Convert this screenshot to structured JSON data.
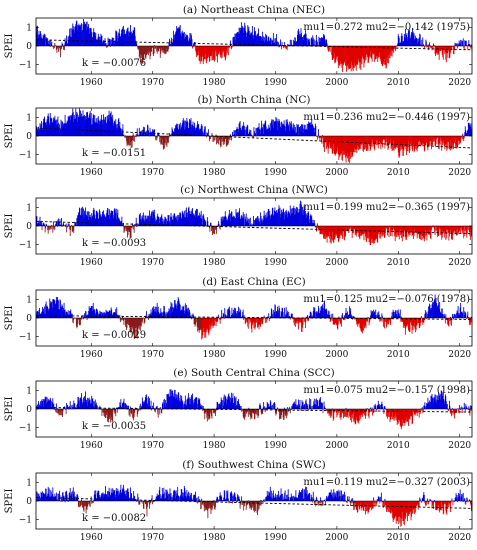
{
  "chart_data": [
    {
      "type": "area",
      "title": "(a) Northeast China (NEC)",
      "ylabel": "SPEI",
      "xlim": [
        1951,
        2022
      ],
      "ylim": [
        -1.5,
        1.5
      ],
      "x_ticks": [
        1960,
        1970,
        1980,
        1990,
        2000,
        2010,
        2020
      ],
      "y_ticks": [
        -1,
        0,
        1
      ],
      "trend_k": "k = -0.0076",
      "mu1": "mu1=0.272",
      "mu2": "mu2=-0.142",
      "change_year": "(1975)",
      "colors": {
        "positive": "#0000dd",
        "negative_before": "#8b1a1a",
        "negative_after": "#e00000"
      },
      "anchors": [
        [
          1951,
          0.9
        ],
        [
          1953,
          0.2
        ],
        [
          1955,
          -0.3
        ],
        [
          1957,
          1.0
        ],
        [
          1959,
          1.2
        ],
        [
          1961,
          0.4
        ],
        [
          1963,
          0.2
        ],
        [
          1965,
          0.8
        ],
        [
          1967,
          0.9
        ],
        [
          1968,
          -0.8
        ],
        [
          1970,
          -0.2
        ],
        [
          1972,
          -0.4
        ],
        [
          1974,
          0.9
        ],
        [
          1976,
          0.5
        ],
        [
          1978,
          -0.8
        ],
        [
          1980,
          -0.6
        ],
        [
          1982,
          -0.4
        ],
        [
          1984,
          1.0
        ],
        [
          1986,
          0.8
        ],
        [
          1988,
          0.5
        ],
        [
          1990,
          0.3
        ],
        [
          1992,
          -0.1
        ],
        [
          1994,
          0.7
        ],
        [
          1996,
          0.2
        ],
        [
          1998,
          0.4
        ],
        [
          2000,
          -0.9
        ],
        [
          2002,
          -1.2
        ],
        [
          2004,
          -0.9
        ],
        [
          2006,
          -0.5
        ],
        [
          2008,
          -0.9
        ],
        [
          2010,
          0.3
        ],
        [
          2012,
          0.7
        ],
        [
          2014,
          0.2
        ],
        [
          2016,
          -0.3
        ],
        [
          2018,
          -0.5
        ],
        [
          2020,
          0.2
        ],
        [
          2022,
          0.0
        ]
      ]
    },
    {
      "type": "area",
      "title": "(b) North China (NC)",
      "ylabel": "SPEI",
      "xlim": [
        1951,
        2022
      ],
      "ylim": [
        -1.5,
        1.5
      ],
      "x_ticks": [
        1960,
        1970,
        1980,
        1990,
        2000,
        2010,
        2020
      ],
      "y_ticks": [
        -1,
        0,
        1
      ],
      "trend_k": "k = -0.0151",
      "mu1": "mu1=0.236",
      "mu2": "mu2=-0.446",
      "change_year": "(1997)",
      "colors": {
        "positive": "#0000dd",
        "negative_before": "#8b1a1a",
        "negative_after": "#e00000"
      },
      "anchors": [
        [
          1951,
          0.3
        ],
        [
          1953,
          1.0
        ],
        [
          1955,
          0.6
        ],
        [
          1957,
          1.1
        ],
        [
          1959,
          1.1
        ],
        [
          1961,
          0.8
        ],
        [
          1963,
          1.1
        ],
        [
          1965,
          0.4
        ],
        [
          1966,
          -0.6
        ],
        [
          1968,
          0.3
        ],
        [
          1970,
          0.2
        ],
        [
          1972,
          -0.5
        ],
        [
          1974,
          0.6
        ],
        [
          1976,
          0.7
        ],
        [
          1978,
          0.4
        ],
        [
          1980,
          -0.2
        ],
        [
          1982,
          -0.4
        ],
        [
          1984,
          0.6
        ],
        [
          1986,
          0.2
        ],
        [
          1988,
          0.5
        ],
        [
          1990,
          0.7
        ],
        [
          1992,
          0.6
        ],
        [
          1994,
          0.4
        ],
        [
          1996,
          0.6
        ],
        [
          1998,
          -0.5
        ],
        [
          2000,
          -0.9
        ],
        [
          2002,
          -1.1
        ],
        [
          2004,
          -0.6
        ],
        [
          2006,
          -0.5
        ],
        [
          2008,
          -0.4
        ],
        [
          2010,
          -0.8
        ],
        [
          2012,
          -0.6
        ],
        [
          2014,
          -0.5
        ],
        [
          2016,
          -0.3
        ],
        [
          2018,
          -0.6
        ],
        [
          2020,
          -0.4
        ],
        [
          2021,
          0.4
        ],
        [
          2022,
          0.6
        ]
      ]
    },
    {
      "type": "area",
      "title": "(c) Northwest China (NWC)",
      "ylabel": "SPEI",
      "xlim": [
        1951,
        2022
      ],
      "ylim": [
        -1.5,
        1.5
      ],
      "x_ticks": [
        1960,
        1970,
        1980,
        1990,
        2000,
        2010,
        2020
      ],
      "y_ticks": [
        -1,
        0,
        1
      ],
      "trend_k": "k = -0.0093",
      "mu1": "mu1=0.199",
      "mu2": "mu2=-0.365",
      "change_year": "(1997)",
      "colors": {
        "positive": "#0000dd",
        "negative_before": "#8b1a1a",
        "negative_after": "#e00000"
      },
      "anchors": [
        [
          1951,
          0.3
        ],
        [
          1953,
          -0.2
        ],
        [
          1955,
          0.2
        ],
        [
          1957,
          -0.3
        ],
        [
          1958,
          0.8
        ],
        [
          1960,
          0.6
        ],
        [
          1962,
          0.7
        ],
        [
          1964,
          0.8
        ],
        [
          1966,
          -0.5
        ],
        [
          1968,
          0.4
        ],
        [
          1970,
          0.7
        ],
        [
          1972,
          0.3
        ],
        [
          1974,
          0.6
        ],
        [
          1976,
          0.8
        ],
        [
          1978,
          0.5
        ],
        [
          1980,
          -0.3
        ],
        [
          1982,
          0.6
        ],
        [
          1984,
          0.6
        ],
        [
          1986,
          0.2
        ],
        [
          1988,
          0.5
        ],
        [
          1990,
          0.8
        ],
        [
          1992,
          0.7
        ],
        [
          1994,
          1.0
        ],
        [
          1996,
          0.3
        ],
        [
          1998,
          -0.6
        ],
        [
          2000,
          -0.7
        ],
        [
          2002,
          -0.3
        ],
        [
          2004,
          -0.5
        ],
        [
          2006,
          -0.8
        ],
        [
          2008,
          -0.3
        ],
        [
          2010,
          -0.5
        ],
        [
          2012,
          -0.4
        ],
        [
          2014,
          -0.6
        ],
        [
          2016,
          -0.2
        ],
        [
          2018,
          -0.5
        ],
        [
          2020,
          -0.3
        ],
        [
          2022,
          -0.4
        ]
      ]
    },
    {
      "type": "area",
      "title": "(d) East China (EC)",
      "ylabel": "SPEI",
      "xlim": [
        1951,
        2022
      ],
      "ylim": [
        -1.5,
        1.5
      ],
      "x_ticks": [
        1960,
        1970,
        1980,
        1990,
        2000,
        2010,
        2020
      ],
      "y_ticks": [
        -1,
        0,
        1
      ],
      "trend_k": "k = -0.0029",
      "mu1": "mu1=0.125",
      "mu2": "mu2=-0.076",
      "change_year": "(1978)",
      "colors": {
        "positive": "#0000dd",
        "negative_before": "#8b1a1a",
        "negative_after": "#e00000"
      },
      "anchors": [
        [
          1951,
          0.2
        ],
        [
          1953,
          0.6
        ],
        [
          1954,
          1.0
        ],
        [
          1956,
          0.4
        ],
        [
          1958,
          -0.3
        ],
        [
          1960,
          0.5
        ],
        [
          1962,
          0.2
        ],
        [
          1964,
          0.4
        ],
        [
          1966,
          -0.5
        ],
        [
          1967,
          -1.0
        ],
        [
          1968,
          -0.4
        ],
        [
          1970,
          0.5
        ],
        [
          1972,
          0.3
        ],
        [
          1974,
          0.8
        ],
        [
          1976,
          0.3
        ],
        [
          1978,
          -0.9
        ],
        [
          1980,
          -0.3
        ],
        [
          1982,
          0.3
        ],
        [
          1984,
          0.4
        ],
        [
          1986,
          -0.4
        ],
        [
          1988,
          -0.3
        ],
        [
          1990,
          0.4
        ],
        [
          1992,
          0.3
        ],
        [
          1994,
          -0.5
        ],
        [
          1996,
          0.2
        ],
        [
          1998,
          0.6
        ],
        [
          2000,
          -0.4
        ],
        [
          2002,
          0.4
        ],
        [
          2004,
          -0.6
        ],
        [
          2006,
          0.3
        ],
        [
          2008,
          -0.3
        ],
        [
          2010,
          0.4
        ],
        [
          2011,
          -0.6
        ],
        [
          2013,
          -0.5
        ],
        [
          2015,
          0.5
        ],
        [
          2016,
          1.0
        ],
        [
          2018,
          -0.3
        ],
        [
          2020,
          0.5
        ],
        [
          2022,
          -0.3
        ]
      ]
    },
    {
      "type": "area",
      "title": "(e) South Central China (SCC)",
      "ylabel": "SPEI",
      "xlim": [
        1951,
        2022
      ],
      "ylim": [
        -1.5,
        1.5
      ],
      "x_ticks": [
        1960,
        1970,
        1980,
        1990,
        2000,
        2010,
        2020
      ],
      "y_ticks": [
        -1,
        0,
        1
      ],
      "trend_k": "k = -0.0035",
      "mu1": "mu1=0.075",
      "mu2": "mu2=-0.157",
      "change_year": "(1998)",
      "colors": {
        "positive": "#0000dd",
        "negative_before": "#8b1a1a",
        "negative_after": "#e00000"
      },
      "anchors": [
        [
          1951,
          0.2
        ],
        [
          1953,
          0.5
        ],
        [
          1955,
          -0.3
        ],
        [
          1957,
          0.3
        ],
        [
          1959,
          0.6
        ],
        [
          1961,
          0.2
        ],
        [
          1963,
          -0.6
        ],
        [
          1965,
          0.3
        ],
        [
          1967,
          -0.3
        ],
        [
          1969,
          0.6
        ],
        [
          1971,
          -0.2
        ],
        [
          1973,
          0.9
        ],
        [
          1975,
          0.4
        ],
        [
          1977,
          0.6
        ],
        [
          1979,
          -0.5
        ],
        [
          1981,
          0.3
        ],
        [
          1983,
          0.7
        ],
        [
          1985,
          -0.3
        ],
        [
          1987,
          -0.2
        ],
        [
          1989,
          0.3
        ],
        [
          1991,
          -0.4
        ],
        [
          1993,
          0.3
        ],
        [
          1995,
          0.2
        ],
        [
          1997,
          0.4
        ],
        [
          1999,
          -0.3
        ],
        [
          2001,
          -0.2
        ],
        [
          2003,
          -0.6
        ],
        [
          2005,
          -0.3
        ],
        [
          2007,
          0.3
        ],
        [
          2009,
          -0.5
        ],
        [
          2011,
          -0.8
        ],
        [
          2013,
          -0.3
        ],
        [
          2015,
          0.4
        ],
        [
          2017,
          0.8
        ],
        [
          2019,
          -0.3
        ],
        [
          2021,
          0.2
        ],
        [
          2022,
          -0.2
        ]
      ]
    },
    {
      "type": "area",
      "title": "(f) Southwest China (SWC)",
      "ylabel": "SPEI",
      "xlim": [
        1951,
        2022
      ],
      "ylim": [
        -1.5,
        1.5
      ],
      "x_ticks": [
        1960,
        1970,
        1980,
        1990,
        2000,
        2010,
        2020
      ],
      "y_ticks": [
        -1,
        0,
        1
      ],
      "trend_k": "k = -0.0082",
      "mu1": "mu1=0.119",
      "mu2": "mu2=-0.327",
      "change_year": "(2003)",
      "colors": {
        "positive": "#0000dd",
        "negative_before": "#8b1a1a",
        "negative_after": "#e00000"
      },
      "anchors": [
        [
          1951,
          0.3
        ],
        [
          1953,
          0.5
        ],
        [
          1955,
          0.2
        ],
        [
          1957,
          0.4
        ],
        [
          1959,
          -0.5
        ],
        [
          1961,
          0.4
        ],
        [
          1963,
          0.5
        ],
        [
          1965,
          0.6
        ],
        [
          1967,
          0.3
        ],
        [
          1969,
          -0.5
        ],
        [
          1971,
          0.5
        ],
        [
          1973,
          0.3
        ],
        [
          1975,
          0.5
        ],
        [
          1977,
          0.2
        ],
        [
          1979,
          -0.6
        ],
        [
          1981,
          0.3
        ],
        [
          1983,
          0.2
        ],
        [
          1985,
          -0.2
        ],
        [
          1987,
          -0.4
        ],
        [
          1989,
          0.4
        ],
        [
          1991,
          0.3
        ],
        [
          1993,
          0.2
        ],
        [
          1995,
          0.5
        ],
        [
          1997,
          -0.2
        ],
        [
          1999,
          0.4
        ],
        [
          2001,
          0.3
        ],
        [
          2003,
          -0.3
        ],
        [
          2005,
          -0.5
        ],
        [
          2007,
          0.2
        ],
        [
          2009,
          -0.8
        ],
        [
          2010,
          -1.1
        ],
        [
          2012,
          -0.7
        ],
        [
          2014,
          0.2
        ],
        [
          2016,
          -0.3
        ],
        [
          2018,
          -0.4
        ],
        [
          2020,
          0.3
        ],
        [
          2022,
          -0.3
        ]
      ]
    }
  ]
}
